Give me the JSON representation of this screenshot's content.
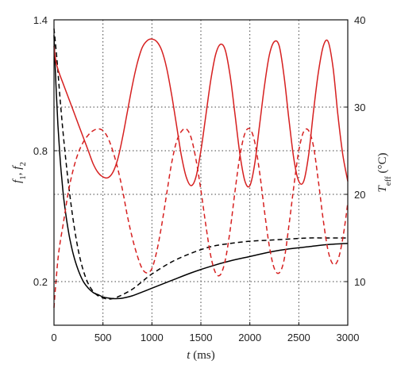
{
  "chart_data": {
    "type": "line",
    "xlabel": {
      "var": "t",
      "unit": " (ms)"
    },
    "ylabel_left": {
      "parts": [
        "f",
        "1",
        ", ",
        "f",
        "2"
      ]
    },
    "ylabel_right": {
      "var": "T",
      "sub": "eff",
      "unit": " (°C)"
    },
    "x_ticks": [
      "0",
      "500",
      "1000",
      "1500",
      "2000",
      "2500",
      "3000"
    ],
    "y_left_ticks": [
      "0.2",
      "0.8",
      "1.4"
    ],
    "y_right_ticks": [
      "10",
      "20",
      "30",
      "40"
    ],
    "xlim": [
      0,
      3000
    ],
    "ylim_left": [
      0,
      1.4
    ],
    "ylim_right": [
      5,
      40
    ],
    "grid": true,
    "series": [
      {
        "axis": "left",
        "color": "#000000",
        "dash": "solid",
        "x": [
          0,
          20,
          40,
          60,
          80,
          100,
          130,
          160,
          200,
          250,
          300,
          350,
          400,
          450,
          500,
          550,
          600,
          650,
          700,
          800,
          900,
          1000,
          1200,
          1400,
          1600,
          1800,
          2000,
          2200,
          2400,
          2600,
          2800,
          3000
        ],
        "y": [
          1.33,
          1.1,
          0.92,
          0.78,
          0.67,
          0.58,
          0.48,
          0.4,
          0.32,
          0.25,
          0.2,
          0.17,
          0.15,
          0.14,
          0.13,
          0.125,
          0.122,
          0.122,
          0.124,
          0.135,
          0.152,
          0.17,
          0.205,
          0.24,
          0.27,
          0.295,
          0.315,
          0.335,
          0.35,
          0.36,
          0.37,
          0.375
        ]
      },
      {
        "axis": "left",
        "color": "#000000",
        "dash": "dashed",
        "x": [
          0,
          30,
          60,
          100,
          150,
          200,
          250,
          300,
          350,
          400,
          450,
          500,
          550,
          600,
          650,
          700,
          800,
          900,
          1000,
          1200,
          1400,
          1600,
          1800,
          2000,
          2200,
          2400,
          2600,
          2800,
          3000
        ],
        "y": [
          1.36,
          1.22,
          1.05,
          0.85,
          0.64,
          0.47,
          0.34,
          0.25,
          0.19,
          0.155,
          0.135,
          0.125,
          0.12,
          0.122,
          0.13,
          0.14,
          0.165,
          0.2,
          0.235,
          0.29,
          0.33,
          0.36,
          0.375,
          0.385,
          0.39,
          0.395,
          0.4,
          0.4,
          0.4
        ]
      },
      {
        "axis": "right",
        "color": "#d62020",
        "dash": "solid",
        "x": [
          0,
          20,
          50,
          100,
          150,
          200,
          250,
          300,
          350,
          400,
          450,
          500,
          550,
          600,
          650,
          700,
          750,
          800,
          850,
          900,
          950,
          1000,
          1050,
          1100,
          1150,
          1200,
          1250,
          1300,
          1350,
          1400,
          1450,
          1500,
          1550,
          1600,
          1650,
          1700,
          1750,
          1800,
          1850,
          1900,
          1950,
          2000,
          2050,
          2100,
          2150,
          2200,
          2250,
          2300,
          2350,
          2400,
          2450,
          2500,
          2550,
          2600,
          2650,
          2700,
          2750,
          2800,
          2850,
          2900,
          2950,
          3000
        ],
        "y": [
          37.0,
          35.2,
          34.0,
          32.5,
          31.0,
          29.5,
          28.0,
          26.5,
          25.0,
          23.5,
          22.5,
          22.0,
          21.9,
          22.5,
          24.0,
          26.5,
          29.5,
          32.5,
          35.0,
          36.8,
          37.6,
          37.8,
          37.5,
          36.5,
          34.5,
          31.5,
          28.0,
          24.5,
          22.0,
          21.0,
          22.0,
          25.0,
          29.0,
          33.0,
          36.0,
          37.2,
          36.5,
          33.5,
          29.0,
          24.5,
          21.5,
          21.0,
          23.5,
          28.0,
          32.5,
          36.0,
          37.5,
          37.0,
          33.5,
          28.5,
          24.0,
          21.5,
          21.5,
          24.5,
          29.5,
          34.0,
          37.0,
          37.5,
          34.5,
          29.0,
          24.5,
          21.5
        ]
      },
      {
        "axis": "right",
        "color": "#d62020",
        "dash": "dashed",
        "x": [
          0,
          20,
          50,
          100,
          150,
          200,
          250,
          300,
          350,
          400,
          450,
          500,
          550,
          600,
          650,
          700,
          750,
          800,
          850,
          900,
          950,
          1000,
          1050,
          1100,
          1150,
          1200,
          1250,
          1300,
          1350,
          1400,
          1450,
          1500,
          1550,
          1600,
          1650,
          1700,
          1750,
          1800,
          1850,
          1900,
          1950,
          2000,
          2050,
          2100,
          2150,
          2200,
          2250,
          2300,
          2350,
          2400,
          2450,
          2500,
          2550,
          2600,
          2650,
          2700,
          2750,
          2800,
          2850,
          2900,
          2950,
          3000
        ],
        "y": [
          7.0,
          10.0,
          13.5,
          17.0,
          20.5,
          23.0,
          24.8,
          26.0,
          26.8,
          27.3,
          27.5,
          27.3,
          26.5,
          25.0,
          23.0,
          20.5,
          17.5,
          15.0,
          13.0,
          11.5,
          11.0,
          11.5,
          13.5,
          16.5,
          20.0,
          23.5,
          26.0,
          27.2,
          27.5,
          26.5,
          24.0,
          20.5,
          16.5,
          13.0,
          11.0,
          10.8,
          12.5,
          16.0,
          20.5,
          24.5,
          27.0,
          27.5,
          26.0,
          22.5,
          18.0,
          14.0,
          11.5,
          11.0,
          12.5,
          16.5,
          21.0,
          25.0,
          27.2,
          27.3,
          25.5,
          21.5,
          17.0,
          13.5,
          12.0,
          12.5,
          15.0,
          19.0
        ]
      }
    ]
  }
}
